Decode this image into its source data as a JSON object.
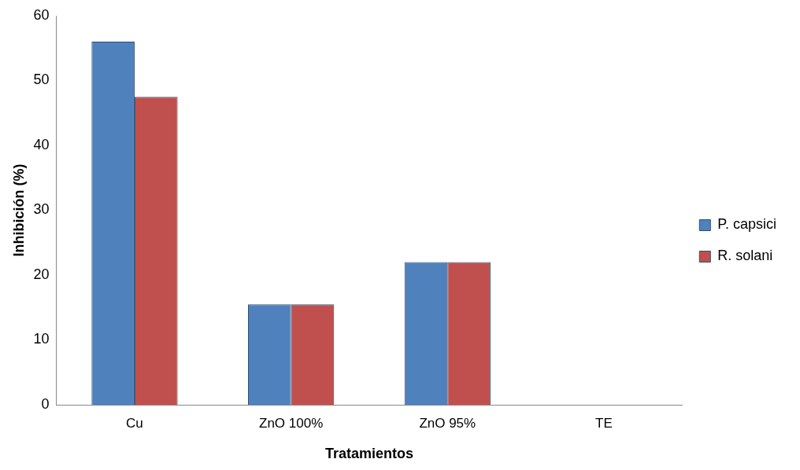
{
  "chart_data": {
    "type": "bar",
    "xlabel": "Tratamientos",
    "ylabel": "Inhibición (%)",
    "categories": [
      "Cu",
      "ZnO 100%",
      "ZnO 95%",
      "TE"
    ],
    "series": [
      {
        "name": "P. capsici",
        "color": "#4f81bd",
        "values": [
          56,
          15.5,
          22,
          0
        ]
      },
      {
        "name": "R. solani",
        "color": "#c0504d",
        "values": [
          47.5,
          15.5,
          22,
          0
        ]
      }
    ],
    "ylim": [
      0,
      60
    ],
    "yticks": [
      0,
      10,
      20,
      30,
      40,
      50,
      60
    ],
    "grid": false,
    "legend": "right"
  }
}
